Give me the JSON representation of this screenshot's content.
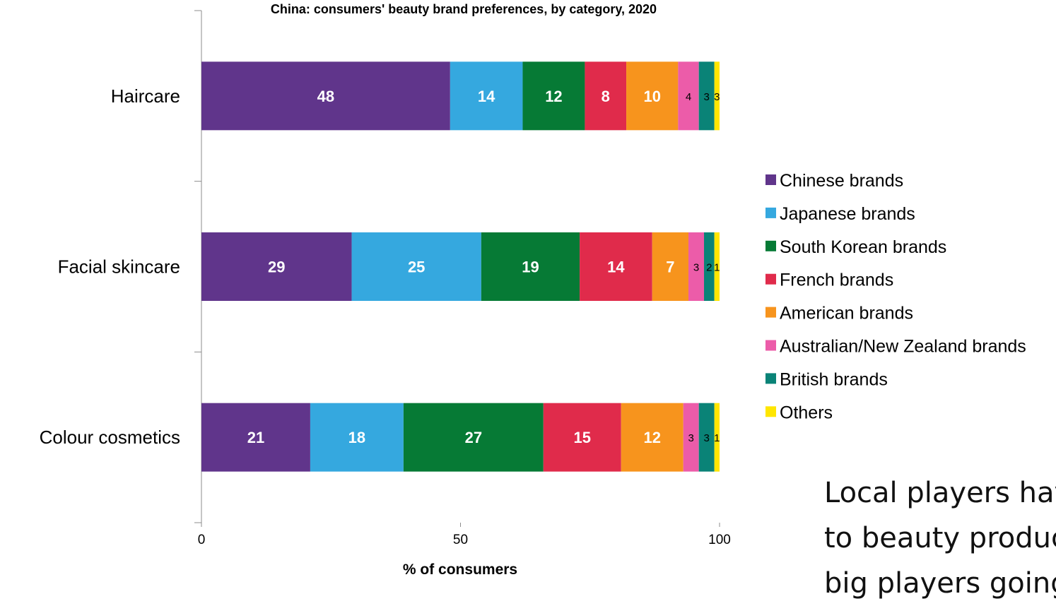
{
  "chart_data": {
    "type": "bar",
    "orientation": "horizontal",
    "stacked": true,
    "title": "China: consumers' beauty brand preferences, by category, 2020",
    "xlabel": "% of consumers",
    "ylabel": "",
    "xlim": [
      0,
      100
    ],
    "xticks": [
      "0",
      "50",
      "100"
    ],
    "categories": [
      "Haircare",
      "Facial skincare",
      "Colour cosmetics"
    ],
    "series": [
      {
        "name": "Chinese brands",
        "color": "#60358b",
        "values": [
          48,
          29,
          21
        ]
      },
      {
        "name": "Japanese brands",
        "color": "#35a8df",
        "values": [
          14,
          25,
          18
        ]
      },
      {
        "name": "South Korean brands",
        "color": "#067a35",
        "values": [
          12,
          19,
          27
        ]
      },
      {
        "name": "French brands",
        "color": "#e02b4b",
        "values": [
          8,
          14,
          15
        ]
      },
      {
        "name": "American brands",
        "color": "#f7941d",
        "values": [
          10,
          7,
          12
        ]
      },
      {
        "name": "Australian/New Zealand brands",
        "color": "#ec5ca9",
        "values": [
          4,
          3,
          3
        ]
      },
      {
        "name": "British brands",
        "color": "#0a8377",
        "values": [
          3,
          2,
          3
        ]
      },
      {
        "name": "Others",
        "color": "#ffe600",
        "values": [
          3,
          1,
          1
        ]
      }
    ],
    "grid": false,
    "legend_position": "right"
  },
  "side_text": {
    "line1": "Local players have",
    "line2": "to beauty products",
    "line3": "big players going"
  }
}
